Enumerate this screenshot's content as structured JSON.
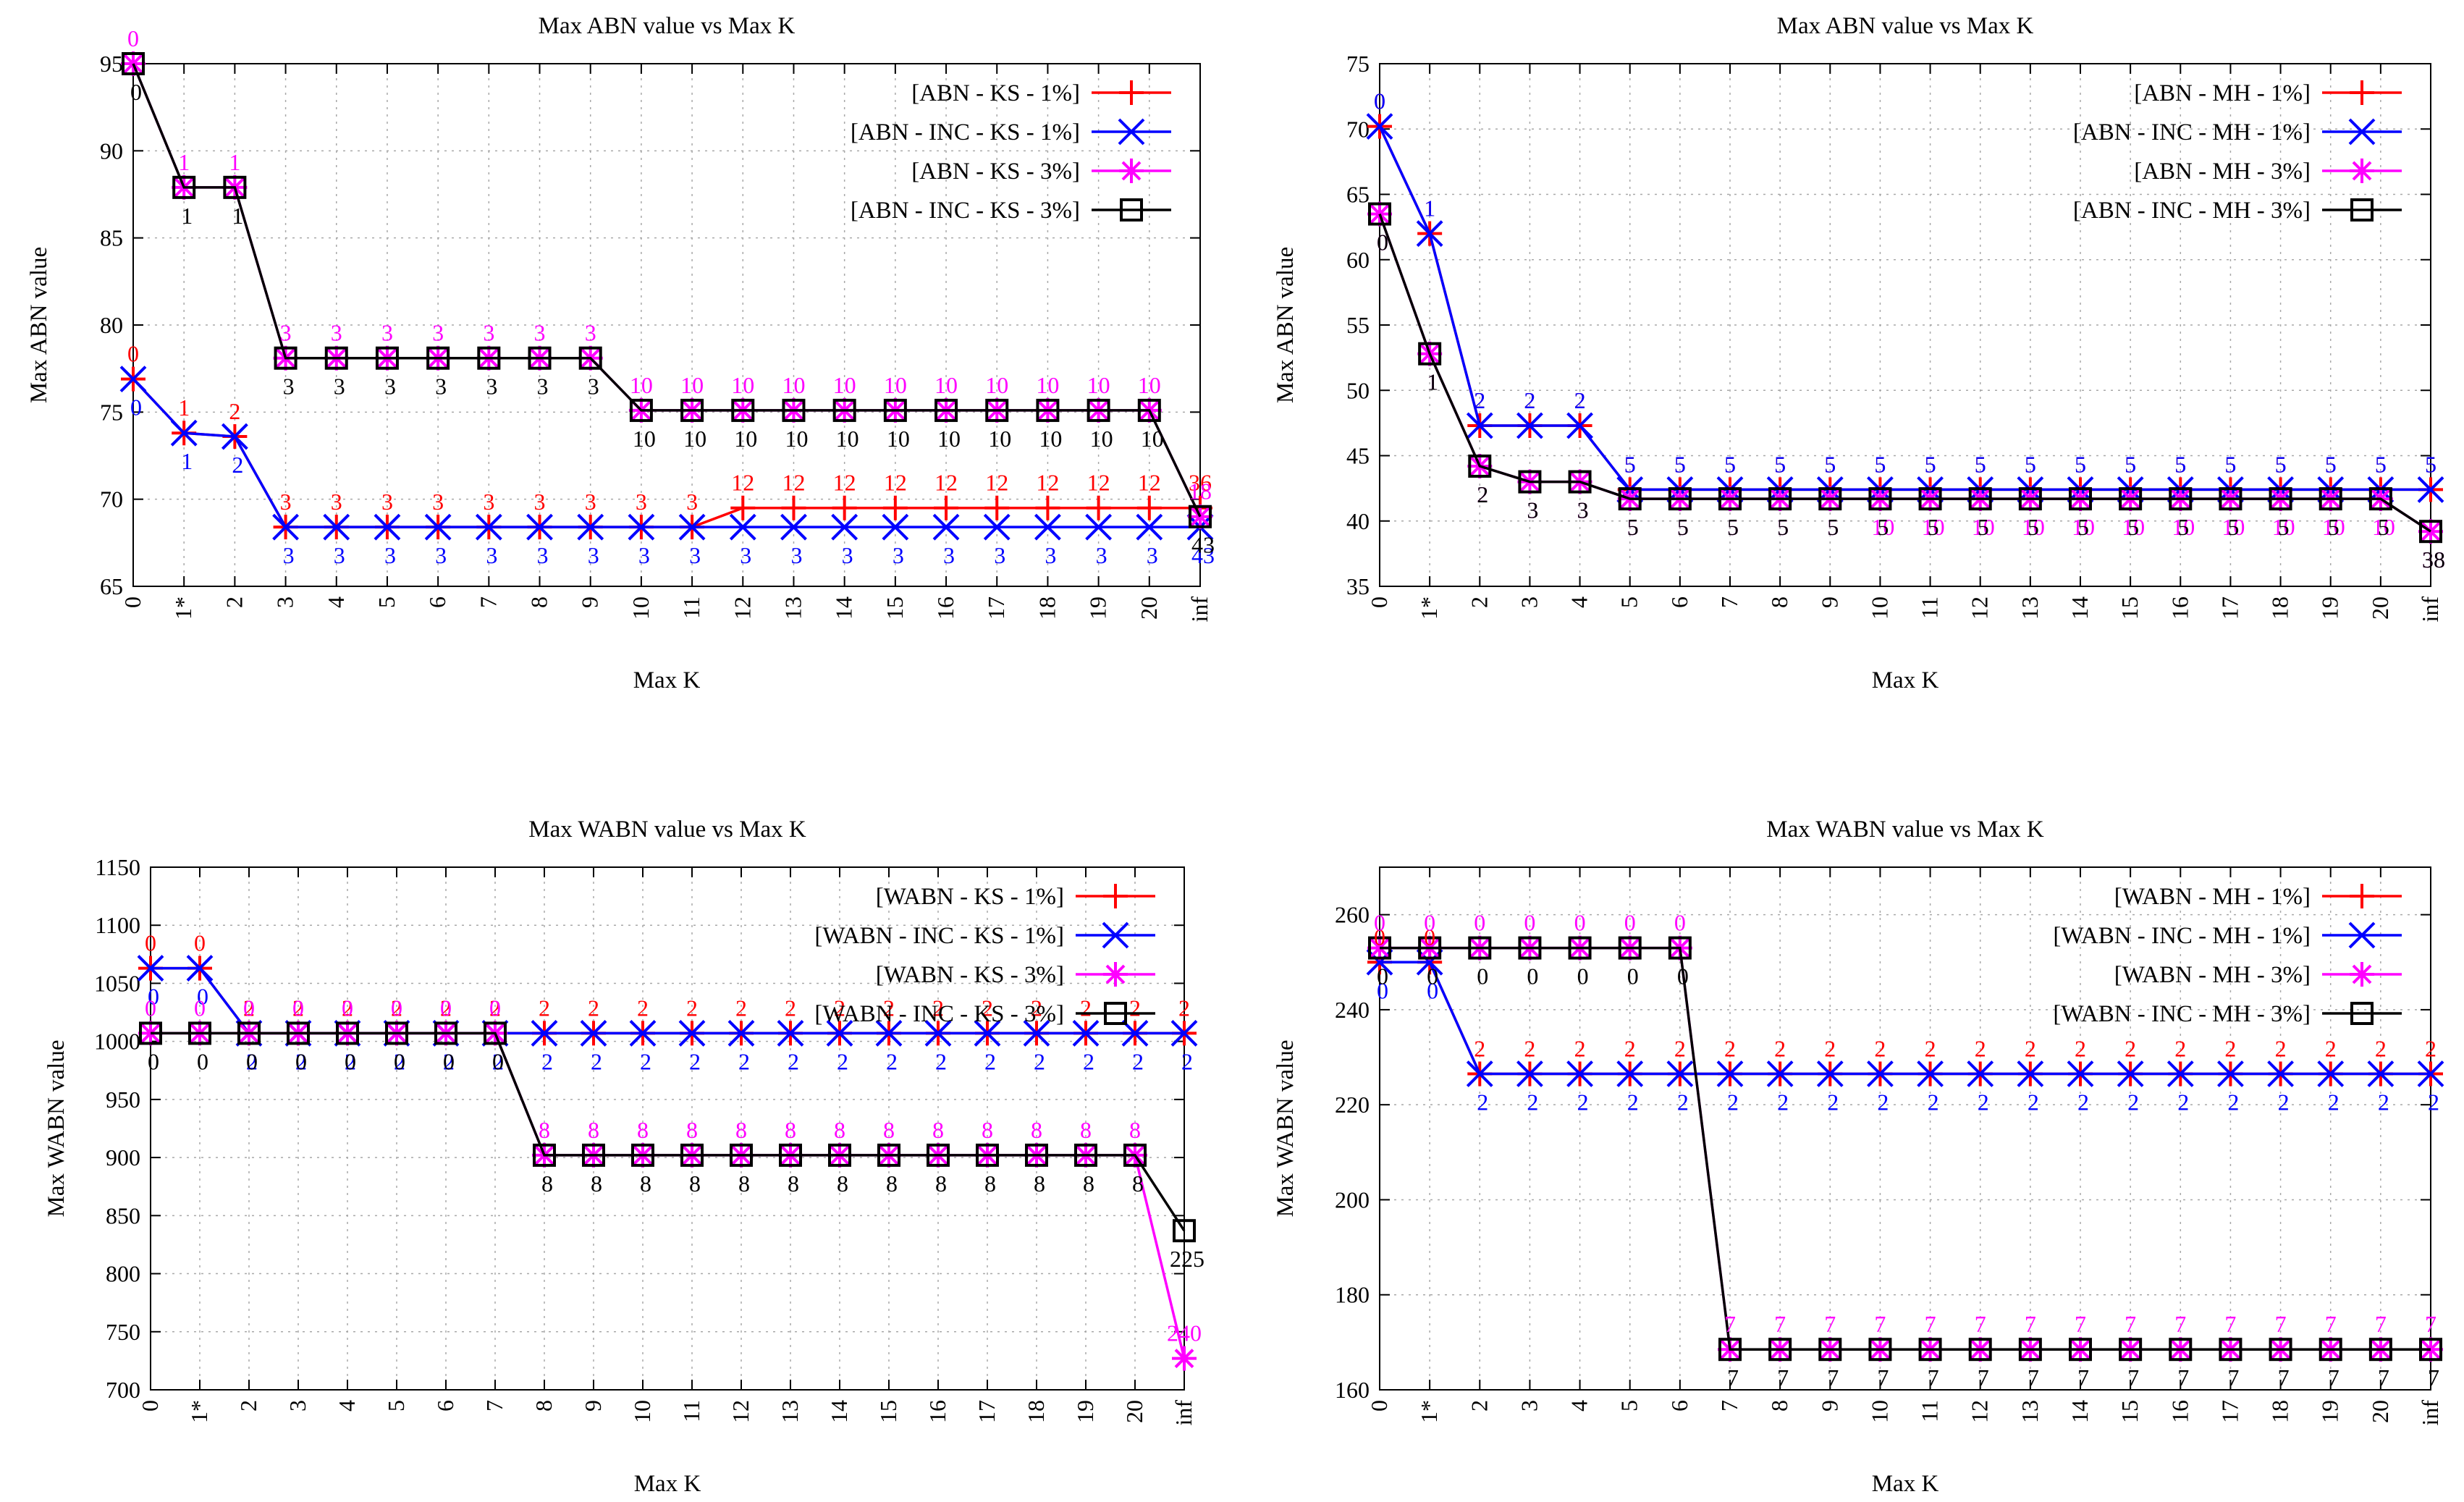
{
  "chart_data": [
    {
      "type": "line",
      "title": "Max ABN value vs Max K",
      "xlabel": "Max K",
      "ylabel": "Max  ABN  value",
      "categories": [
        "0",
        "1*",
        "2",
        "3",
        "4",
        "5",
        "6",
        "7",
        "8",
        "9",
        "10",
        "11",
        "12",
        "13",
        "14",
        "15",
        "16",
        "17",
        "18",
        "19",
        "20",
        "inf"
      ],
      "ylim": [
        65,
        95
      ],
      "yticks": [
        65,
        70,
        75,
        80,
        85,
        90,
        95
      ],
      "grid": true,
      "legend_position": "top-right",
      "series": [
        {
          "name": "[ABN - KS - 1%]",
          "color": "#ff0000",
          "marker": "plus",
          "values": [
            76.9,
            73.8,
            73.6,
            68.4,
            68.4,
            68.4,
            68.4,
            68.4,
            68.4,
            68.4,
            68.4,
            68.4,
            69.5,
            69.5,
            69.5,
            69.5,
            69.5,
            69.5,
            69.5,
            69.5,
            69.5,
            69.5
          ],
          "labels": [
            "0",
            "1",
            "2",
            "3",
            "3",
            "3",
            "3",
            "3",
            "3",
            "3",
            "3",
            "3",
            "12",
            "12",
            "12",
            "12",
            "12",
            "12",
            "12",
            "12",
            "12",
            "36"
          ],
          "label_side": "above"
        },
        {
          "name": "[ABN - INC - KS - 1%]",
          "color": "#0000ff",
          "marker": "cross",
          "values": [
            76.9,
            73.8,
            73.6,
            68.4,
            68.4,
            68.4,
            68.4,
            68.4,
            68.4,
            68.4,
            68.4,
            68.4,
            68.4,
            68.4,
            68.4,
            68.4,
            68.4,
            68.4,
            68.4,
            68.4,
            68.4,
            68.4
          ],
          "labels": [
            "0",
            "1",
            "2",
            "3",
            "3",
            "3",
            "3",
            "3",
            "3",
            "3",
            "3",
            "3",
            "3",
            "3",
            "3",
            "3",
            "3",
            "3",
            "3",
            "3",
            "3",
            "43"
          ],
          "label_side": "below"
        },
        {
          "name": "[ABN - KS - 3%]",
          "color": "#ff00ff",
          "marker": "star",
          "values": [
            95,
            87.9,
            87.9,
            78.1,
            78.1,
            78.1,
            78.1,
            78.1,
            78.1,
            78.1,
            75.1,
            75.1,
            75.1,
            75.1,
            75.1,
            75.1,
            75.1,
            75.1,
            75.1,
            75.1,
            75.1,
            69
          ],
          "labels": [
            "0",
            "1",
            "1",
            "3",
            "3",
            "3",
            "3",
            "3",
            "3",
            "3",
            "10",
            "10",
            "10",
            "10",
            "10",
            "10",
            "10",
            "10",
            "10",
            "10",
            "10",
            "18"
          ],
          "label_side": "above"
        },
        {
          "name": "[ABN - INC - KS - 3%]",
          "color": "#000000",
          "marker": "square",
          "values": [
            95,
            87.9,
            87.9,
            78.1,
            78.1,
            78.1,
            78.1,
            78.1,
            78.1,
            78.1,
            75.1,
            75.1,
            75.1,
            75.1,
            75.1,
            75.1,
            75.1,
            75.1,
            75.1,
            75.1,
            75.1,
            69
          ],
          "labels": [
            "0",
            "1",
            "1",
            "3",
            "3",
            "3",
            "3",
            "3",
            "3",
            "3",
            "10",
            "10",
            "10",
            "10",
            "10",
            "10",
            "10",
            "10",
            "10",
            "10",
            "10",
            "43"
          ],
          "label_side": "below"
        }
      ]
    },
    {
      "type": "line",
      "title": "Max ABN value vs Max K",
      "xlabel": "Max K",
      "ylabel": "Max  ABN  value",
      "categories": [
        "0",
        "1*",
        "2",
        "3",
        "4",
        "5",
        "6",
        "7",
        "8",
        "9",
        "10",
        "11",
        "12",
        "13",
        "14",
        "15",
        "16",
        "17",
        "18",
        "19",
        "20",
        "inf"
      ],
      "ylim": [
        35,
        75
      ],
      "yticks": [
        35,
        40,
        45,
        50,
        55,
        60,
        65,
        70,
        75
      ],
      "grid": true,
      "legend_position": "top-right",
      "series": [
        {
          "name": "[ABN - MH - 1%]",
          "color": "#ff0000",
          "marker": "plus",
          "values": [
            70.2,
            62,
            47.3,
            47.3,
            47.3,
            42.4,
            42.4,
            42.4,
            42.4,
            42.4,
            42.4,
            42.4,
            42.4,
            42.4,
            42.4,
            42.4,
            42.4,
            42.4,
            42.4,
            42.4,
            42.4,
            42.4
          ],
          "labels": [
            "0",
            "1",
            "2",
            "2",
            "2",
            "5",
            "5",
            "5",
            "5",
            "5",
            "5",
            "5",
            "5",
            "5",
            "5",
            "5",
            "5",
            "5",
            "5",
            "5",
            "5",
            "5"
          ],
          "label_side": "above"
        },
        {
          "name": "[ABN - INC - MH - 1%]",
          "color": "#0000ff",
          "marker": "cross",
          "values": [
            70.2,
            62,
            47.3,
            47.3,
            47.3,
            42.4,
            42.4,
            42.4,
            42.4,
            42.4,
            42.4,
            42.4,
            42.4,
            42.4,
            42.4,
            42.4,
            42.4,
            42.4,
            42.4,
            42.4,
            42.4,
            42.4
          ],
          "labels": [
            "0",
            "1",
            "2",
            "2",
            "2",
            "5",
            "5",
            "5",
            "5",
            "5",
            "5",
            "5",
            "5",
            "5",
            "5",
            "5",
            "5",
            "5",
            "5",
            "5",
            "5",
            "5"
          ],
          "label_side": "above"
        },
        {
          "name": "[ABN - MH - 3%]",
          "color": "#ff00ff",
          "marker": "star",
          "values": [
            63.5,
            52.8,
            44.2,
            43,
            43,
            41.7,
            41.7,
            41.7,
            41.7,
            41.7,
            41.7,
            41.7,
            41.7,
            41.7,
            41.7,
            41.7,
            41.7,
            41.7,
            41.7,
            41.7,
            41.7,
            39.2
          ],
          "labels": [
            "0",
            "1",
            "2",
            "3",
            "3",
            "5",
            "5",
            "5",
            "5",
            "5",
            "10",
            "10",
            "10",
            "10",
            "10",
            "10",
            "10",
            "10",
            "10",
            "10",
            "10",
            "38"
          ],
          "label_side": "below"
        },
        {
          "name": "[ABN - INC - MH - 3%]",
          "color": "#000000",
          "marker": "square",
          "values": [
            63.5,
            52.8,
            44.2,
            43,
            43,
            41.7,
            41.7,
            41.7,
            41.7,
            41.7,
            41.7,
            41.7,
            41.7,
            41.7,
            41.7,
            41.7,
            41.7,
            41.7,
            41.7,
            41.7,
            41.7,
            39.2
          ],
          "labels": [
            "0",
            "1",
            "2",
            "3",
            "3",
            "5",
            "5",
            "5",
            "5",
            "5",
            "5",
            "5",
            "5",
            "5",
            "5",
            "5",
            "5",
            "5",
            "5",
            "5",
            "5",
            "38"
          ],
          "label_side": "below"
        }
      ]
    },
    {
      "type": "line",
      "title": "Max WABN value vs Max K",
      "xlabel": "Max K",
      "ylabel": "Max  WABN  value",
      "categories": [
        "0",
        "1*",
        "2",
        "3",
        "4",
        "5",
        "6",
        "7",
        "8",
        "9",
        "10",
        "11",
        "12",
        "13",
        "14",
        "15",
        "16",
        "17",
        "18",
        "19",
        "20",
        "inf"
      ],
      "ylim": [
        700,
        1150
      ],
      "yticks": [
        700,
        750,
        800,
        850,
        900,
        950,
        1000,
        1050,
        1100,
        1150
      ],
      "grid": true,
      "legend_position": "top-right",
      "series": [
        {
          "name": "[WABN - KS - 1%]",
          "color": "#ff0000",
          "marker": "plus",
          "values": [
            1063,
            1063,
            1007,
            1007,
            1007,
            1007,
            1007,
            1007,
            1007,
            1007,
            1007,
            1007,
            1007,
            1007,
            1007,
            1007,
            1007,
            1007,
            1007,
            1007,
            1007,
            1007
          ],
          "labels": [
            "0",
            "0",
            "2",
            "2",
            "2",
            "2",
            "2",
            "2",
            "2",
            "2",
            "2",
            "2",
            "2",
            "2",
            "2",
            "2",
            "2",
            "2",
            "2",
            "2",
            "2",
            "2"
          ],
          "label_side": "above"
        },
        {
          "name": "[WABN - INC - KS - 1%]",
          "color": "#0000ff",
          "marker": "cross",
          "values": [
            1063,
            1063,
            1007,
            1007,
            1007,
            1007,
            1007,
            1007,
            1007,
            1007,
            1007,
            1007,
            1007,
            1007,
            1007,
            1007,
            1007,
            1007,
            1007,
            1007,
            1007,
            1007
          ],
          "labels": [
            "0",
            "0",
            "2",
            "2",
            "2",
            "2",
            "2",
            "2",
            "2",
            "2",
            "2",
            "2",
            "2",
            "2",
            "2",
            "2",
            "2",
            "2",
            "2",
            "2",
            "2",
            "2"
          ],
          "label_side": "below"
        },
        {
          "name": "[WABN - KS - 3%]",
          "color": "#ff00ff",
          "marker": "star",
          "values": [
            1007,
            1007,
            1007,
            1007,
            1007,
            1007,
            1007,
            1007,
            902,
            902,
            902,
            902,
            902,
            902,
            902,
            902,
            902,
            902,
            902,
            902,
            902,
            727
          ],
          "labels": [
            "0",
            "0",
            "0",
            "0",
            "0",
            "0",
            "0",
            "0",
            "8",
            "8",
            "8",
            "8",
            "8",
            "8",
            "8",
            "8",
            "8",
            "8",
            "8",
            "8",
            "8",
            "240"
          ],
          "label_side": "above"
        },
        {
          "name": "[WABN - INC - KS - 3%]",
          "color": "#000000",
          "marker": "square",
          "values": [
            1007,
            1007,
            1007,
            1007,
            1007,
            1007,
            1007,
            1007,
            902,
            902,
            902,
            902,
            902,
            902,
            902,
            902,
            902,
            902,
            902,
            902,
            902,
            837
          ],
          "labels": [
            "0",
            "0",
            "0",
            "0",
            "0",
            "0",
            "0",
            "0",
            "8",
            "8",
            "8",
            "8",
            "8",
            "8",
            "8",
            "8",
            "8",
            "8",
            "8",
            "8",
            "8",
            "225"
          ],
          "label_side": "below"
        }
      ]
    },
    {
      "type": "line",
      "title": "Max WABN value vs Max K",
      "xlabel": "Max K",
      "ylabel": "Max  WABN  value",
      "categories": [
        "0",
        "1*",
        "2",
        "3",
        "4",
        "5",
        "6",
        "7",
        "8",
        "9",
        "10",
        "11",
        "12",
        "13",
        "14",
        "15",
        "16",
        "17",
        "18",
        "19",
        "20",
        "inf"
      ],
      "ylim": [
        160,
        270
      ],
      "yticks": [
        160,
        180,
        200,
        220,
        240,
        260
      ],
      "grid": true,
      "legend_position": "top-right",
      "series": [
        {
          "name": "[WABN - MH - 1%]",
          "color": "#ff0000",
          "marker": "plus",
          "values": [
            250,
            250,
            226.5,
            226.5,
            226.5,
            226.5,
            226.5,
            226.5,
            226.5,
            226.5,
            226.5,
            226.5,
            226.5,
            226.5,
            226.5,
            226.5,
            226.5,
            226.5,
            226.5,
            226.5,
            226.5,
            226.5
          ],
          "labels": [
            "0",
            "0",
            "2",
            "2",
            "2",
            "2",
            "2",
            "2",
            "2",
            "2",
            "2",
            "2",
            "2",
            "2",
            "2",
            "2",
            "2",
            "2",
            "2",
            "2",
            "2",
            "2"
          ],
          "label_side": "above"
        },
        {
          "name": "[WABN - INC - MH - 1%]",
          "color": "#0000ff",
          "marker": "cross",
          "values": [
            250,
            250,
            226.5,
            226.5,
            226.5,
            226.5,
            226.5,
            226.5,
            226.5,
            226.5,
            226.5,
            226.5,
            226.5,
            226.5,
            226.5,
            226.5,
            226.5,
            226.5,
            226.5,
            226.5,
            226.5,
            226.5
          ],
          "labels": [
            "0",
            "0",
            "2",
            "2",
            "2",
            "2",
            "2",
            "2",
            "2",
            "2",
            "2",
            "2",
            "2",
            "2",
            "2",
            "2",
            "2",
            "2",
            "2",
            "2",
            "2",
            "2"
          ],
          "label_side": "below"
        },
        {
          "name": "[WABN - MH - 3%]",
          "color": "#ff00ff",
          "marker": "star",
          "values": [
            253,
            253,
            253,
            253,
            253,
            253,
            253,
            168.5,
            168.5,
            168.5,
            168.5,
            168.5,
            168.5,
            168.5,
            168.5,
            168.5,
            168.5,
            168.5,
            168.5,
            168.5,
            168.5,
            168.5
          ],
          "labels": [
            "0",
            "0",
            "0",
            "0",
            "0",
            "0",
            "0",
            "7",
            "7",
            "7",
            "7",
            "7",
            "7",
            "7",
            "7",
            "7",
            "7",
            "7",
            "7",
            "7",
            "7",
            "7"
          ],
          "label_side": "above"
        },
        {
          "name": "[WABN - INC - MH - 3%]",
          "color": "#000000",
          "marker": "square",
          "values": [
            253,
            253,
            253,
            253,
            253,
            253,
            253,
            168.5,
            168.5,
            168.5,
            168.5,
            168.5,
            168.5,
            168.5,
            168.5,
            168.5,
            168.5,
            168.5,
            168.5,
            168.5,
            168.5,
            168.5
          ],
          "labels": [
            "0",
            "0",
            "0",
            "0",
            "0",
            "0",
            "0",
            "7",
            "7",
            "7",
            "7",
            "7",
            "7",
            "7",
            "7",
            "7",
            "7",
            "7",
            "7",
            "7",
            "7",
            "7"
          ],
          "label_side": "below"
        }
      ]
    }
  ]
}
